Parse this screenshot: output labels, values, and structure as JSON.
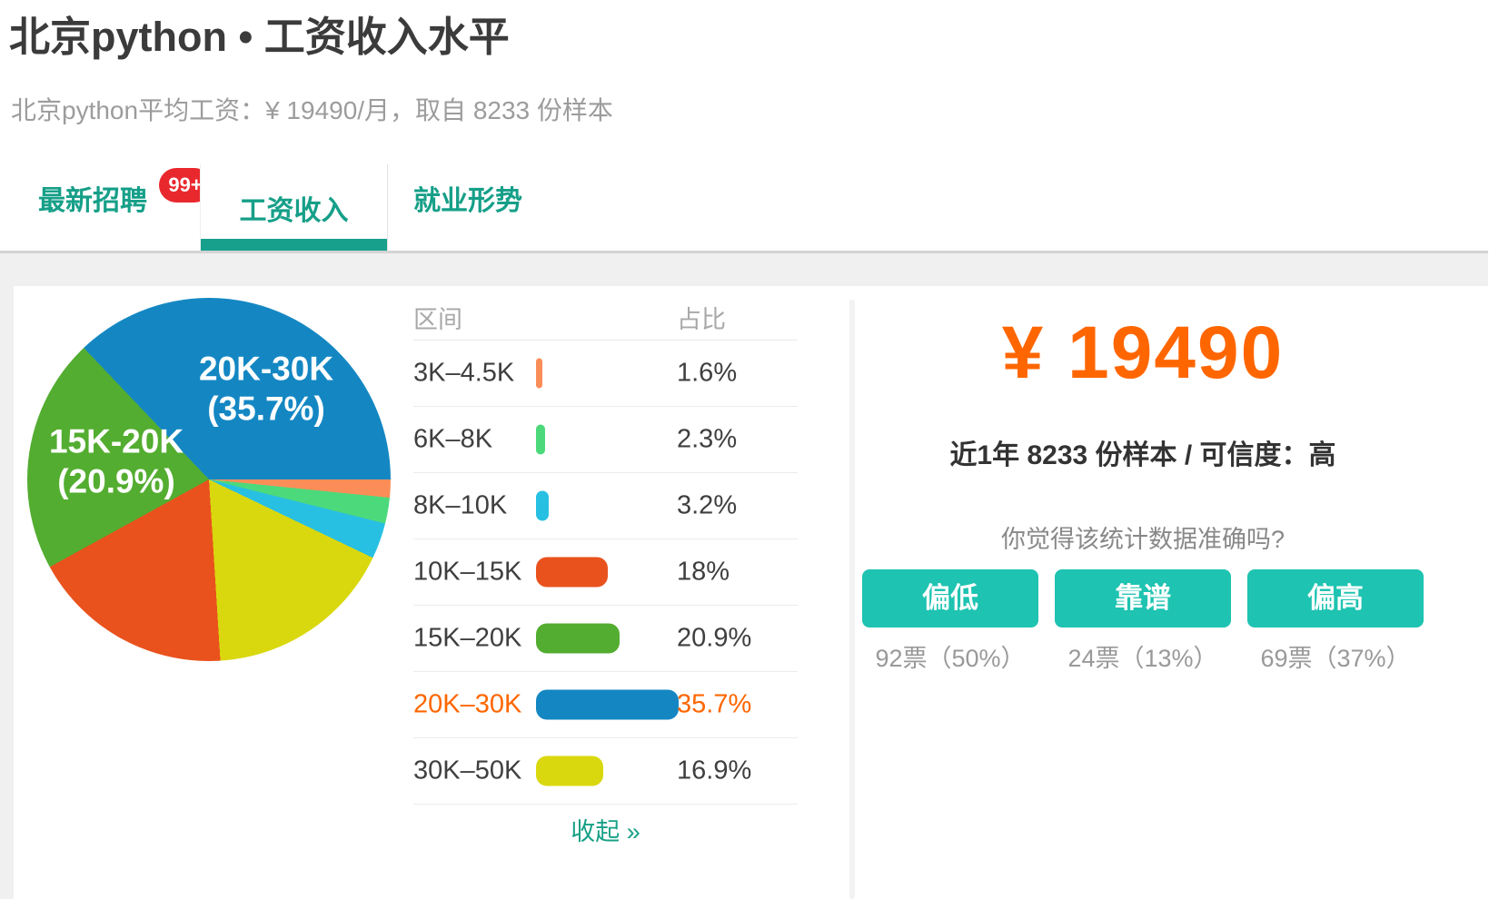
{
  "colors": {
    "accent_teal": "#169f88",
    "tab_underline_teal": "#17a08c",
    "button_teal": "#1ec3b1",
    "highlight_orange": "#ff6600",
    "badge_red": "#e9282d"
  },
  "header": {
    "title": "北京python • 工资收入水平",
    "subtitle": "北京python平均工资：¥ 19490/月，取自 8233 份样本"
  },
  "tabs": {
    "items": [
      {
        "label": "最新招聘",
        "badge": "99+"
      },
      {
        "label": "工资收入"
      },
      {
        "label": "就业形势"
      }
    ],
    "active_index": 1
  },
  "chart_data": {
    "type": "pie",
    "legend_position": "right-table",
    "slices": [
      {
        "label": "3K–4.5K",
        "value": 1.6,
        "color": "#fb8e58"
      },
      {
        "label": "6K–8K",
        "value": 2.3,
        "color": "#4cd97b"
      },
      {
        "label": "8K–10K",
        "value": 3.2,
        "color": "#28c0e2"
      },
      {
        "label": "30K–50K",
        "value": 16.9,
        "color": "#d9d80e"
      },
      {
        "label": "10K–15K",
        "value": 18,
        "color": "#e9521d"
      },
      {
        "label": "15K–20K",
        "value": 20.9,
        "color": "#53ad30"
      },
      {
        "label": "20K–30K",
        "value": 35.7,
        "color": "#1487c3"
      }
    ],
    "pie_labels": [
      {
        "line1": "20K-30K",
        "line2": "(35.7%)"
      },
      {
        "line1": "15K-20K",
        "line2": "(20.9%)"
      }
    ],
    "table": {
      "headers": [
        "区间",
        "占比"
      ],
      "rows": [
        {
          "range": "3K–4.5K",
          "value": 1.6,
          "percent": "1.6%",
          "color": "#fb8e58",
          "highlighted": false
        },
        {
          "range": "6K–8K",
          "value": 2.3,
          "percent": "2.3%",
          "color": "#4cd97b",
          "highlighted": false
        },
        {
          "range": "8K–10K",
          "value": 3.2,
          "percent": "3.2%",
          "color": "#28c0e2",
          "highlighted": false
        },
        {
          "range": "10K–15K",
          "value": 18,
          "percent": "18%",
          "color": "#e9521d",
          "highlighted": false
        },
        {
          "range": "15K–20K",
          "value": 20.9,
          "percent": "20.9%",
          "color": "#53ad30",
          "highlighted": false
        },
        {
          "range": "20K–30K",
          "value": 35.7,
          "percent": "35.7%",
          "color": "#1487c3",
          "highlighted": true
        },
        {
          "range": "30K–50K",
          "value": 16.9,
          "percent": "16.9%",
          "color": "#d9d80e",
          "highlighted": false
        }
      ]
    },
    "collapse_link": "收起 »"
  },
  "salary_panel": {
    "amount": "¥ 19490",
    "meta": "近1年 8233 份样本 / 可信度：高",
    "question": "你觉得该统计数据准确吗?",
    "buttons": [
      {
        "label": "偏低",
        "votes": "92票（50%）"
      },
      {
        "label": "靠谱",
        "votes": "24票（13%）"
      },
      {
        "label": "偏高",
        "votes": "69票（37%）"
      }
    ]
  }
}
